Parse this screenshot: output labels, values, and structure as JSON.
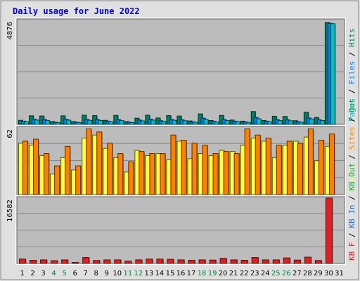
{
  "title": "Daily usage for June 2022",
  "colors": {
    "background": "#bcbcbc",
    "pages": "#00c0c0",
    "files": "#0080ff",
    "hits": "#008060",
    "visits": "#ffff40",
    "sites": "#ff8000",
    "kb_in": "#2070c0",
    "kb_out": "#00a060",
    "kb_f": "#e02020",
    "weekday": "#000000",
    "weekend": "#008040"
  },
  "chart_data": [
    {
      "type": "bar",
      "categories": [
        "1",
        "2",
        "3",
        "4",
        "5",
        "6",
        "7",
        "8",
        "9",
        "10",
        "11",
        "12",
        "13",
        "14",
        "15",
        "16",
        "17",
        "18",
        "19",
        "20",
        "21",
        "22",
        "23",
        "24",
        "25",
        "26",
        "27",
        "28",
        "29",
        "30",
        "31"
      ],
      "weekend_days": [
        "4",
        "5",
        "11",
        "12",
        "18",
        "19",
        "25",
        "26"
      ],
      "side_labels": [
        "Pages",
        "Files",
        "Hits"
      ],
      "ylim_label": "4876",
      "ylim": [
        0,
        4876
      ],
      "series": [
        {
          "name": "Hits",
          "values": [
            190,
            400,
            390,
            130,
            400,
            130,
            430,
            410,
            190,
            420,
            130,
            290,
            430,
            300,
            410,
            390,
            160,
            490,
            180,
            420,
            200,
            150,
            600,
            180,
            380,
            370,
            170,
            570,
            320,
            4780,
            0
          ]
        },
        {
          "name": "Files",
          "values": [
            150,
            240,
            230,
            100,
            240,
            100,
            230,
            220,
            150,
            220,
            100,
            200,
            240,
            170,
            230,
            210,
            120,
            290,
            140,
            220,
            150,
            110,
            320,
            150,
            220,
            210,
            120,
            300,
            210,
            4740,
            0
          ]
        },
        {
          "name": "Pages",
          "values": [
            120,
            200,
            180,
            80,
            200,
            80,
            190,
            180,
            120,
            180,
            80,
            160,
            200,
            140,
            190,
            170,
            100,
            230,
            110,
            180,
            120,
            90,
            260,
            120,
            180,
            170,
            100,
            250,
            180,
            4720,
            0
          ]
        }
      ]
    },
    {
      "type": "bar",
      "categories": [
        "1",
        "2",
        "3",
        "4",
        "5",
        "6",
        "7",
        "8",
        "9",
        "10",
        "11",
        "12",
        "13",
        "14",
        "15",
        "16",
        "17",
        "18",
        "19",
        "20",
        "21",
        "22",
        "23",
        "24",
        "25",
        "26",
        "27",
        "28",
        "29",
        "30",
        "31"
      ],
      "side_labels": [
        "Visits",
        "Sites",
        "Out"
      ],
      "ylim_label": "62",
      "ylim": [
        0,
        65
      ],
      "series": [
        {
          "name": "Visits",
          "values": [
            50,
            48,
            38,
            20,
            36,
            24,
            55,
            58,
            45,
            36,
            22,
            43,
            38,
            40,
            34,
            52,
            35,
            40,
            38,
            43,
            42,
            48,
            55,
            52,
            36,
            48,
            52,
            56,
            33,
            47,
            0
          ]
        },
        {
          "name": "Sites",
          "values": [
            52,
            54,
            40,
            28,
            47,
            28,
            64,
            61,
            50,
            40,
            32,
            42,
            40,
            40,
            58,
            53,
            50,
            48,
            40,
            42,
            40,
            64,
            58,
            55,
            48,
            52,
            50,
            64,
            53,
            59,
            0
          ]
        }
      ]
    },
    {
      "type": "bar",
      "categories": [
        "1",
        "2",
        "3",
        "4",
        "5",
        "6",
        "7",
        "8",
        "9",
        "10",
        "11",
        "12",
        "13",
        "14",
        "15",
        "16",
        "17",
        "18",
        "19",
        "20",
        "21",
        "22",
        "23",
        "24",
        "25",
        "26",
        "27",
        "28",
        "29",
        "30",
        "31"
      ],
      "side_labels": [
        "KB F",
        "KB In",
        "KB Out"
      ],
      "ylim_label": "16582",
      "ylim": [
        0,
        16582
      ],
      "series": [
        {
          "name": "KB F",
          "values": [
            1100,
            800,
            900,
            700,
            900,
            250,
            1500,
            750,
            900,
            900,
            600,
            900,
            1100,
            1100,
            1050,
            900,
            800,
            900,
            850,
            1300,
            900,
            800,
            1500,
            900,
            900,
            1400,
            850,
            1600,
            750,
            16582,
            0
          ]
        }
      ]
    }
  ]
}
